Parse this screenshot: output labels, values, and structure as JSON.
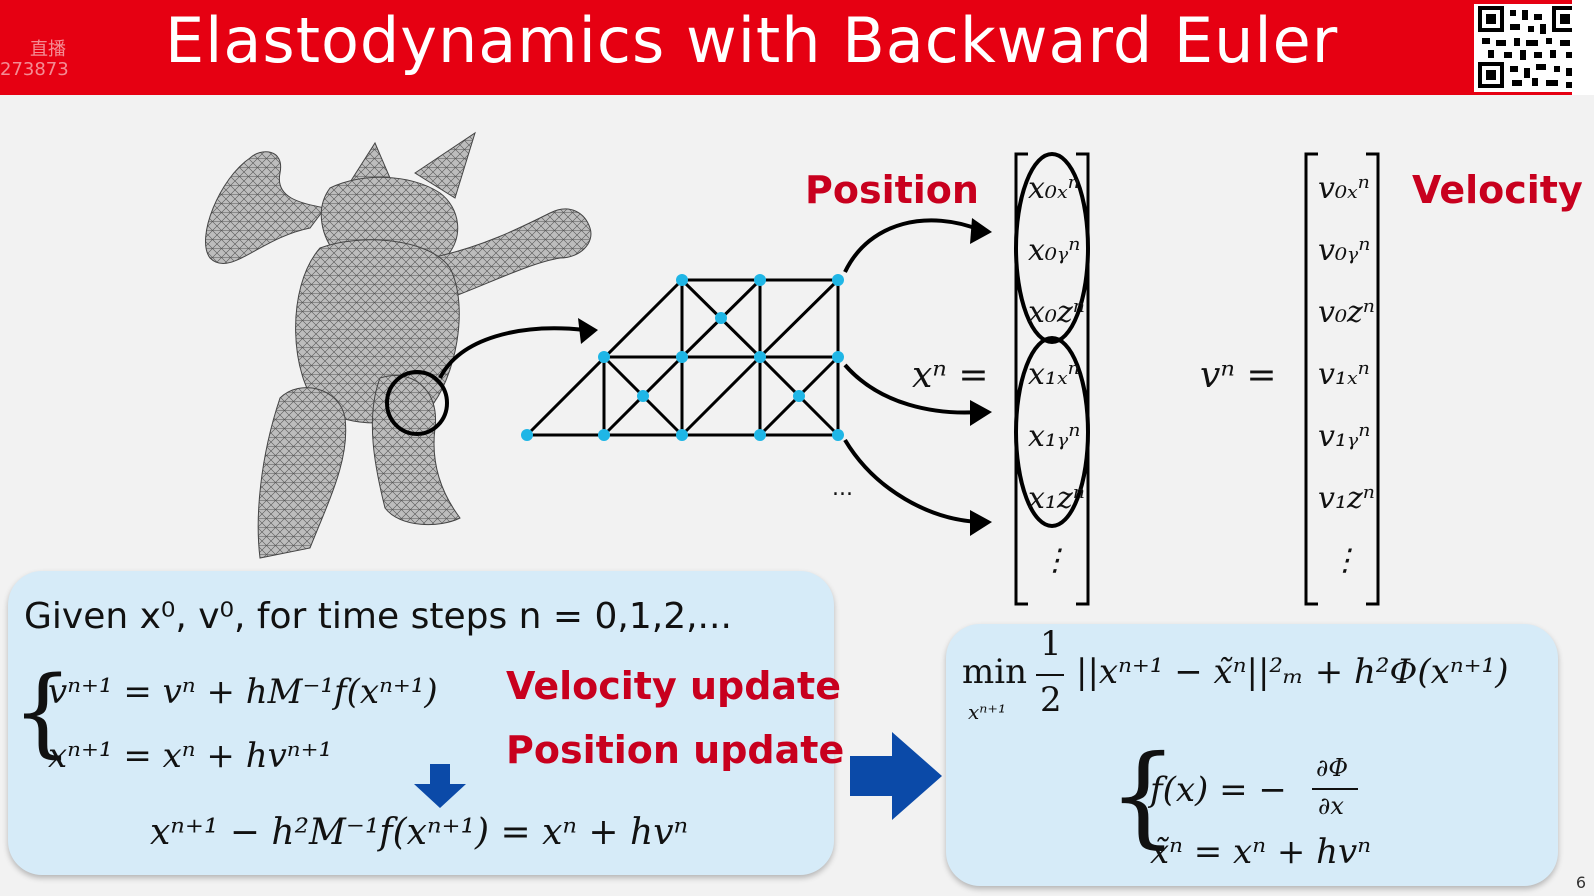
{
  "header": {
    "title": "Elastodynamics with Backward Euler",
    "watermark_line1": "直播",
    "watermark_line2": "273873"
  },
  "labels": {
    "position": "Position",
    "velocity": "Velocity",
    "velocity_update": "Velocity update",
    "position_update": "Position update",
    "ellipsis": "..."
  },
  "vectors": {
    "x_lhs": "xⁿ =",
    "v_lhs": "vⁿ =",
    "x_entries": [
      "x₀ₓⁿ",
      "x₀ᵧⁿ",
      "x₀zⁿ",
      "x₁ₓⁿ",
      "x₁ᵧⁿ",
      "x₁zⁿ",
      "⋮"
    ],
    "v_entries": [
      "v₀ₓⁿ",
      "v₀ᵧⁿ",
      "v₀zⁿ",
      "v₁ₓⁿ",
      "v₁ᵧⁿ",
      "v₁zⁿ",
      "⋮"
    ]
  },
  "left_box": {
    "given": "Given x⁰, v⁰, for time steps n = 0,1,2,...",
    "eq1": "vⁿ⁺¹ = vⁿ + hM⁻¹f(xⁿ⁺¹)",
    "eq2": "xⁿ⁺¹ = xⁿ + hvⁿ⁺¹",
    "eq3": "xⁿ⁺¹ − h²M⁻¹f(xⁿ⁺¹) = xⁿ + hvⁿ"
  },
  "right_box": {
    "min": "min",
    "min_sub": "xⁿ⁺¹",
    "frac_num": "1",
    "frac_den": "2",
    "objective": "||xⁿ⁺¹ − x̃ⁿ||²ₘ + h²Φ(xⁿ⁺¹)",
    "f_def_lhs": "f(x) = −",
    "f_def_num": "∂Φ",
    "f_def_den": "∂x",
    "xtilde_def": "x̃ⁿ = xⁿ + hvⁿ"
  },
  "page_number": "6",
  "colors": {
    "header_red": "#e60012",
    "label_red": "#c8001e",
    "box_blue": "#d6ebf8",
    "arrow_blue": "#0b4aa8",
    "node_cyan": "#1fb6e6"
  }
}
